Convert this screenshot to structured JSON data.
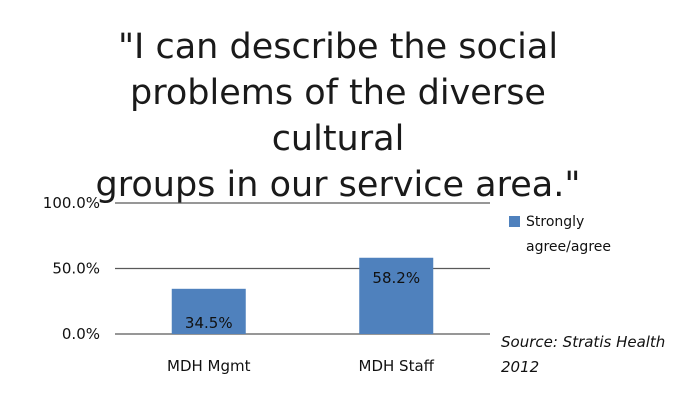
{
  "chart_data": {
    "type": "bar",
    "title": "\"I can describe the social problems of the diverse cultural groups in our service area.\"",
    "categories": [
      "MDH Mgmt",
      "MDH Staff"
    ],
    "series": [
      {
        "name": "Strongly agree/agree",
        "values": [
          34.5,
          58.2
        ]
      }
    ],
    "data_labels": [
      "34.5%",
      "58.2%"
    ],
    "ylim": [
      0,
      100
    ],
    "yticks": [
      0,
      50,
      100
    ],
    "ytick_labels": [
      "0.0%",
      "50.0%",
      "100.0%"
    ],
    "grid": true,
    "legend_placement": "right",
    "colors": {
      "bar": "#4f81bd",
      "grid": "#595959"
    },
    "source_note": "Source: Stratis Health 2012"
  }
}
